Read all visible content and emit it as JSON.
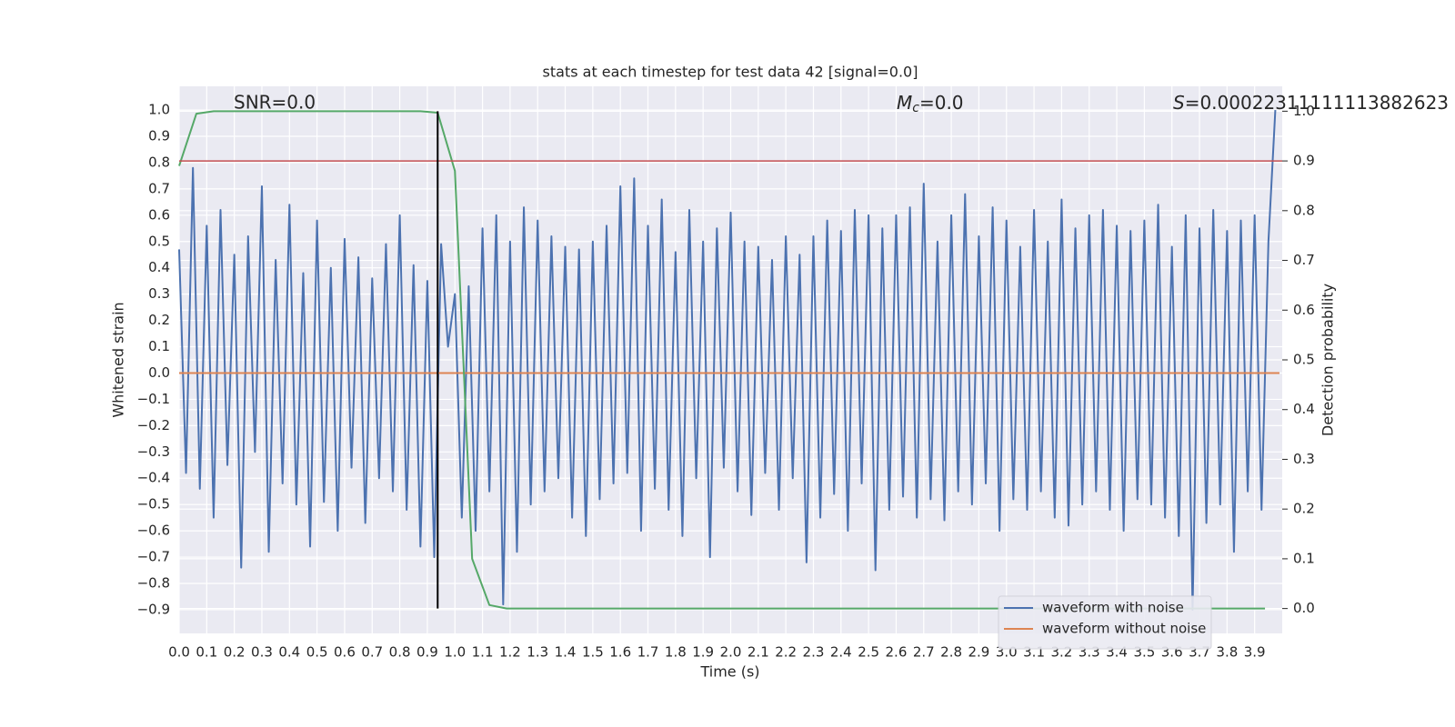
{
  "chart_data": {
    "type": "line",
    "title": "stats at each timestep for test data 42 [signal=0.0]",
    "xlabel": "Time (s)",
    "ylabel": "Whitened strain",
    "y2label": "Detection probability",
    "annotations": [
      {
        "text": "SNR=0.0"
      },
      {
        "symbol": "M",
        "subscript": "c",
        "text": "=0.0"
      },
      {
        "symbol": "S",
        "text": "=0.00022311111113882623"
      }
    ],
    "xlim": [
      0,
      4.0
    ],
    "ylim": [
      -0.99,
      1.09
    ],
    "y2lim": [
      -0.05,
      1.05
    ],
    "grid": true,
    "legend": "lower right",
    "xticks": [
      {
        "value": 0,
        "label": "0.0"
      },
      {
        "value": 0.1,
        "label": "0.1"
      },
      {
        "value": 0.2,
        "label": "0.2"
      },
      {
        "value": 0.3,
        "label": "0.3"
      },
      {
        "value": 0.4,
        "label": "0.4"
      },
      {
        "value": 0.5,
        "label": "0.5"
      },
      {
        "value": 0.6,
        "label": "0.6"
      },
      {
        "value": 0.7,
        "label": "0.7"
      },
      {
        "value": 0.8,
        "label": "0.8"
      },
      {
        "value": 0.9,
        "label": "0.9"
      },
      {
        "value": 1,
        "label": "1.0"
      },
      {
        "value": 1.1,
        "label": "1.1"
      },
      {
        "value": 1.2,
        "label": "1.2"
      },
      {
        "value": 1.3,
        "label": "1.3"
      },
      {
        "value": 1.4,
        "label": "1.4"
      },
      {
        "value": 1.5,
        "label": "1.5"
      },
      {
        "value": 1.6,
        "label": "1.6"
      },
      {
        "value": 1.7,
        "label": "1.7"
      },
      {
        "value": 1.8,
        "label": "1.8"
      },
      {
        "value": 1.9,
        "label": "1.9"
      },
      {
        "value": 2,
        "label": "2.0"
      },
      {
        "value": 2.1,
        "label": "2.1"
      },
      {
        "value": 2.2,
        "label": "2.2"
      },
      {
        "value": 2.3,
        "label": "2.3"
      },
      {
        "value": 2.4,
        "label": "2.4"
      },
      {
        "value": 2.5,
        "label": "2.5"
      },
      {
        "value": 2.6,
        "label": "2.6"
      },
      {
        "value": 2.7,
        "label": "2.7"
      },
      {
        "value": 2.8,
        "label": "2.8"
      },
      {
        "value": 2.9,
        "label": "2.9"
      },
      {
        "value": 3,
        "label": "3.0"
      },
      {
        "value": 3.1,
        "label": "3.1"
      },
      {
        "value": 3.2,
        "label": "3.2"
      },
      {
        "value": 3.3,
        "label": "3.3"
      },
      {
        "value": 3.4,
        "label": "3.4"
      },
      {
        "value": 3.5,
        "label": "3.5"
      },
      {
        "value": 3.6,
        "label": "3.6"
      },
      {
        "value": 3.7,
        "label": "3.7"
      },
      {
        "value": 3.8,
        "label": "3.8"
      },
      {
        "value": 3.9,
        "label": "3.9"
      }
    ],
    "yticks": [
      {
        "value": -0.9,
        "label": "−0.9"
      },
      {
        "value": -0.8,
        "label": "−0.8"
      },
      {
        "value": -0.7,
        "label": "−0.7"
      },
      {
        "value": -0.6,
        "label": "−0.6"
      },
      {
        "value": -0.5,
        "label": "−0.5"
      },
      {
        "value": -0.4,
        "label": "−0.4"
      },
      {
        "value": -0.3,
        "label": "−0.3"
      },
      {
        "value": -0.2,
        "label": "−0.2"
      },
      {
        "value": -0.1,
        "label": "−0.1"
      },
      {
        "value": 0,
        "label": "0.0"
      },
      {
        "value": 0.1,
        "label": "0.1"
      },
      {
        "value": 0.2,
        "label": "0.2"
      },
      {
        "value": 0.3,
        "label": "0.3"
      },
      {
        "value": 0.4,
        "label": "0.4"
      },
      {
        "value": 0.5,
        "label": "0.5"
      },
      {
        "value": 0.6,
        "label": "0.6"
      },
      {
        "value": 0.7,
        "label": "0.7"
      },
      {
        "value": 0.8,
        "label": "0.8"
      },
      {
        "value": 0.9,
        "label": "0.9"
      },
      {
        "value": 1,
        "label": "1.0"
      }
    ],
    "y2ticks": [
      {
        "value": 0,
        "label": "0.0"
      },
      {
        "value": 0.1,
        "label": "0.1"
      },
      {
        "value": 0.2,
        "label": "0.2"
      },
      {
        "value": 0.3,
        "label": "0.3"
      },
      {
        "value": 0.4,
        "label": "0.4"
      },
      {
        "value": 0.5,
        "label": "0.5"
      },
      {
        "value": 0.6,
        "label": "0.6"
      },
      {
        "value": 0.7,
        "label": "0.7"
      },
      {
        "value": 0.8,
        "label": "0.8"
      },
      {
        "value": 0.9,
        "label": "0.9"
      },
      {
        "value": 1,
        "label": "1.0"
      }
    ],
    "series": [
      {
        "name": "waveform with noise",
        "color": "#4c72b0",
        "x": [
          0,
          0.025,
          0.05,
          0.075,
          0.1,
          0.125,
          0.15,
          0.175,
          0.2,
          0.225,
          0.25,
          0.275,
          0.3,
          0.325,
          0.35,
          0.375,
          0.4,
          0.425,
          0.45,
          0.475,
          0.5,
          0.525,
          0.55,
          0.575,
          0.6,
          0.625,
          0.65,
          0.675,
          0.7,
          0.725,
          0.75,
          0.775,
          0.8,
          0.825,
          0.85,
          0.875,
          0.9,
          0.925,
          0.95,
          0.975,
          1,
          1.025,
          1.05,
          1.075,
          1.1,
          1.125,
          1.15,
          1.175,
          1.2,
          1.225,
          1.25,
          1.275,
          1.3,
          1.325,
          1.35,
          1.375,
          1.4,
          1.425,
          1.45,
          1.475,
          1.5,
          1.525,
          1.55,
          1.575,
          1.6,
          1.625,
          1.65,
          1.675,
          1.7,
          1.725,
          1.75,
          1.775,
          1.8,
          1.825,
          1.85,
          1.875,
          1.9,
          1.925,
          1.95,
          1.975,
          2,
          2.025,
          2.05,
          2.075,
          2.1,
          2.125,
          2.15,
          2.175,
          2.2,
          2.225,
          2.25,
          2.275,
          2.3,
          2.325,
          2.35,
          2.375,
          2.4,
          2.425,
          2.45,
          2.475,
          2.5,
          2.525,
          2.55,
          2.575,
          2.6,
          2.625,
          2.65,
          2.675,
          2.7,
          2.725,
          2.75,
          2.775,
          2.8,
          2.825,
          2.85,
          2.875,
          2.9,
          2.925,
          2.95,
          2.975,
          3,
          3.025,
          3.05,
          3.075,
          3.1,
          3.125,
          3.15,
          3.175,
          3.2,
          3.225,
          3.25,
          3.275,
          3.3,
          3.325,
          3.35,
          3.375,
          3.4,
          3.425,
          3.45,
          3.475,
          3.5,
          3.525,
          3.55,
          3.575,
          3.6,
          3.625,
          3.65,
          3.675,
          3.7,
          3.725,
          3.75,
          3.775,
          3.8,
          3.825,
          3.85,
          3.875,
          3.9,
          3.925,
          3.95,
          3.975
        ],
        "values": [
          0.47,
          -0.38,
          0.78,
          -0.44,
          0.56,
          -0.55,
          0.62,
          -0.35,
          0.45,
          -0.74,
          0.52,
          -0.3,
          0.71,
          -0.68,
          0.43,
          -0.42,
          0.64,
          -0.5,
          0.38,
          -0.66,
          0.58,
          -0.49,
          0.4,
          -0.6,
          0.51,
          -0.36,
          0.44,
          -0.57,
          0.36,
          -0.4,
          0.49,
          -0.45,
          0.6,
          -0.52,
          0.41,
          -0.66,
          0.35,
          -0.7,
          0.49,
          0.1,
          0.3,
          -0.55,
          0.33,
          -0.6,
          0.55,
          -0.45,
          0.6,
          -0.88,
          0.5,
          -0.68,
          0.63,
          -0.5,
          0.58,
          -0.45,
          0.52,
          -0.4,
          0.48,
          -0.55,
          0.47,
          -0.62,
          0.5,
          -0.48,
          0.56,
          -0.42,
          0.71,
          -0.38,
          0.74,
          -0.6,
          0.56,
          -0.44,
          0.66,
          -0.52,
          0.46,
          -0.62,
          0.62,
          -0.4,
          0.5,
          -0.7,
          0.55,
          -0.36,
          0.61,
          -0.45,
          0.5,
          -0.54,
          0.48,
          -0.38,
          0.43,
          -0.52,
          0.52,
          -0.4,
          0.45,
          -0.72,
          0.52,
          -0.55,
          0.58,
          -0.46,
          0.54,
          -0.6,
          0.62,
          -0.42,
          0.6,
          -0.75,
          0.55,
          -0.52,
          0.6,
          -0.47,
          0.63,
          -0.55,
          0.72,
          -0.48,
          0.5,
          -0.56,
          0.6,
          -0.45,
          0.68,
          -0.5,
          0.52,
          -0.42,
          0.63,
          -0.6,
          0.58,
          -0.48,
          0.48,
          -0.52,
          0.62,
          -0.45,
          0.5,
          -0.55,
          0.66,
          -0.58,
          0.55,
          -0.5,
          0.6,
          -0.45,
          0.62,
          -0.52,
          0.56,
          -0.6,
          0.54,
          -0.48,
          0.58,
          -0.5,
          0.64,
          -0.55,
          0.48,
          -0.62,
          0.6,
          -0.9,
          0.55,
          -0.57,
          0.62,
          -0.5,
          0.54,
          -0.68,
          0.58,
          -0.45,
          0.6,
          -0.52,
          0.5,
          1.0
        ]
      },
      {
        "name": "waveform without noise",
        "color": "#dd8452",
        "x": [
          0,
          3.99
        ],
        "values": [
          0,
          0
        ]
      },
      {
        "color": "#55a868",
        "axis": "y2",
        "x": [
          0,
          0.0625,
          0.125,
          0.1875,
          0.25,
          0.3125,
          0.375,
          0.4375,
          0.5,
          0.5625,
          0.625,
          0.6875,
          0.75,
          0.8125,
          0.875,
          0.9375,
          1,
          1.0625,
          1.125,
          1.1875,
          1.25,
          1.3125,
          1.375,
          1.4375,
          1.5,
          1.5625,
          1.625,
          1.6875,
          1.75,
          1.8125,
          1.875,
          1.9375,
          2,
          2.0625,
          2.125,
          2.1875,
          2.25,
          2.3125,
          2.375,
          2.4375,
          2.5,
          2.5625,
          2.625,
          2.6875,
          2.75,
          2.8125,
          2.875,
          2.9375,
          3,
          3.0625,
          3.125,
          3.1875,
          3.25,
          3.3125,
          3.375,
          3.4375,
          3.5,
          3.5625,
          3.625,
          3.6875,
          3.75,
          3.8125,
          3.875,
          3.9375
        ],
        "values": [
          0.89,
          0.995,
          1,
          1,
          1,
          1,
          1,
          1,
          1,
          1,
          1,
          1,
          1,
          1,
          1,
          0.997,
          0.88,
          0.1,
          0.007,
          0,
          0,
          0,
          0,
          0,
          0,
          0,
          0,
          0,
          0,
          0,
          0,
          0,
          0,
          0,
          0,
          0,
          0,
          0,
          0,
          0,
          0,
          0,
          0,
          0,
          0,
          0,
          0,
          0,
          0,
          0,
          0,
          0,
          0,
          0,
          0,
          0,
          0,
          0,
          0,
          0,
          0,
          0,
          0,
          0
        ]
      }
    ],
    "hlines": [
      {
        "y": 0.9,
        "axis": "y2",
        "color": "#c44e52"
      }
    ],
    "vlines": [
      {
        "x": 0.9375,
        "ymin": 0,
        "ymax": 1,
        "axis": "y2",
        "color": "#000000"
      }
    ]
  }
}
